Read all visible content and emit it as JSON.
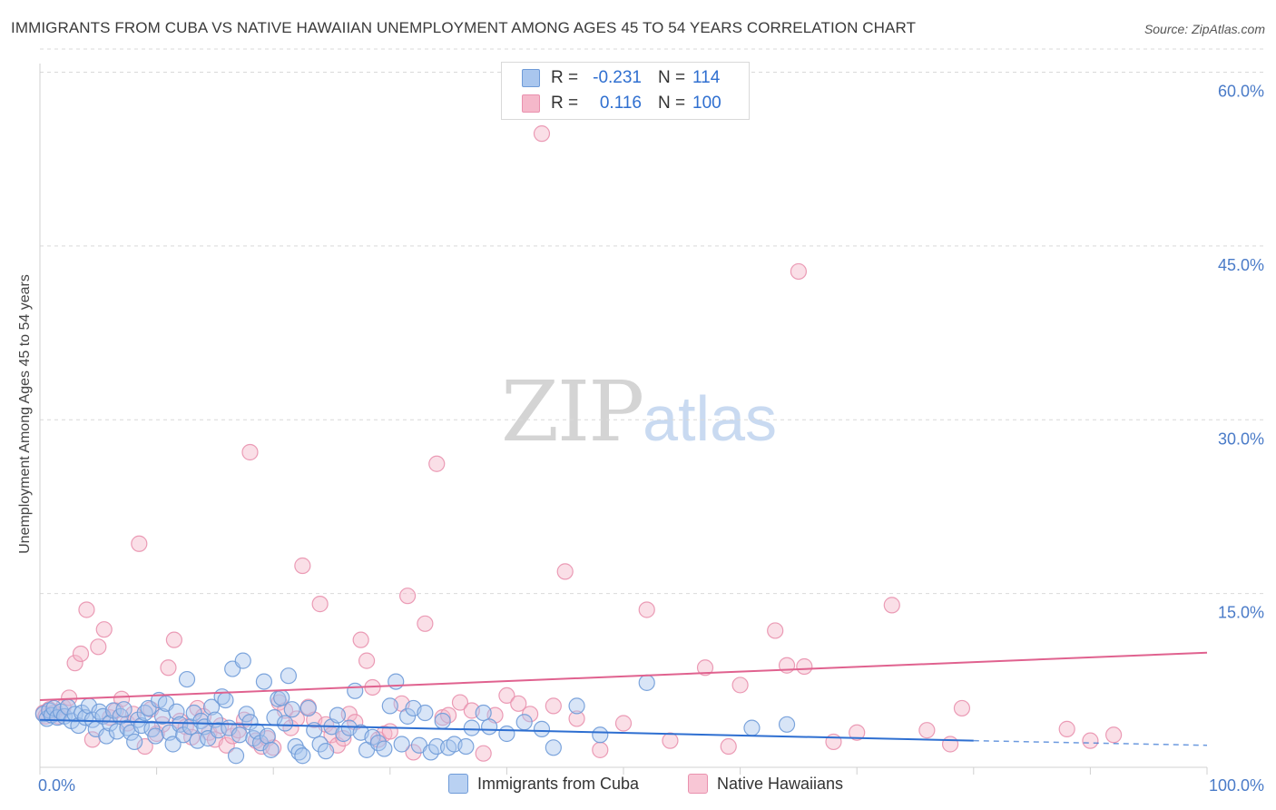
{
  "title": "IMMIGRANTS FROM CUBA VS NATIVE HAWAIIAN UNEMPLOYMENT AMONG AGES 45 TO 54 YEARS CORRELATION CHART",
  "source": "Source: ZipAtlas.com",
  "watermark": {
    "zip": "ZIP",
    "atlas": "atlas"
  },
  "legend": {
    "series1": {
      "r_label": "R =",
      "r_value": "-0.231",
      "n_label": "N =",
      "n_value": "114"
    },
    "series2": {
      "r_label": "R =",
      "r_value": "0.116",
      "n_label": "N =",
      "n_value": "100"
    }
  },
  "colors": {
    "blue_fill": "#a9c6ee",
    "blue_stroke": "#6f9bd8",
    "blue_line": "#2e6fd1",
    "pink_fill": "#f5b8ca",
    "pink_stroke": "#e991ae",
    "pink_line": "#e0628f",
    "grid": "#d9d9d9",
    "tick_text": "#4a7bc8"
  },
  "chart_data": {
    "type": "scatter",
    "title": "IMMIGRANTS FROM CUBA VS NATIVE HAWAIIAN UNEMPLOYMENT AMONG AGES 45 TO 54 YEARS CORRELATION CHART",
    "xlabel": "",
    "ylabel": "Unemployment Among Ages 45 to 54 years",
    "xlim": [
      0,
      100
    ],
    "ylim": [
      0,
      62
    ],
    "x_tick_labels": [
      "0.0%",
      "100.0%"
    ],
    "y_ticks": [
      15,
      30,
      45,
      60
    ],
    "y_tick_labels": [
      "15.0%",
      "30.0%",
      "45.0%",
      "60.0%"
    ],
    "grid": true,
    "legend_position": "top-center",
    "series": [
      {
        "name": "Immigrants from Cuba",
        "color": "blue",
        "trend": {
          "x0": 0,
          "y0": 4.1,
          "x1": 80,
          "y1": 2.3,
          "dashed_to": 100,
          "dashed_y": 1.9
        },
        "points": [
          [
            0.3,
            4.6
          ],
          [
            0.6,
            4.2
          ],
          [
            0.8,
            4.9
          ],
          [
            1.0,
            4.5
          ],
          [
            1.2,
            5.1
          ],
          [
            1.5,
            4.3
          ],
          [
            1.8,
            4.8
          ],
          [
            2.1,
            4.4
          ],
          [
            2.4,
            5.2
          ],
          [
            2.7,
            4.0
          ],
          [
            3.0,
            4.6
          ],
          [
            3.3,
            3.6
          ],
          [
            3.6,
            4.7
          ],
          [
            3.9,
            4.3
          ],
          [
            4.2,
            5.3
          ],
          [
            4.5,
            4.1
          ],
          [
            4.8,
            3.3
          ],
          [
            5.1,
            4.8
          ],
          [
            5.4,
            4.4
          ],
          [
            5.7,
            2.7
          ],
          [
            6.0,
            3.8
          ],
          [
            6.3,
            4.9
          ],
          [
            6.6,
            3.1
          ],
          [
            6.9,
            4.4
          ],
          [
            7.2,
            5.0
          ],
          [
            7.5,
            3.4
          ],
          [
            7.8,
            3.0
          ],
          [
            8.1,
            2.2
          ],
          [
            8.4,
            4.1
          ],
          [
            8.7,
            3.6
          ],
          [
            9.0,
            4.7
          ],
          [
            9.3,
            5.1
          ],
          [
            9.6,
            3.3
          ],
          [
            9.9,
            2.7
          ],
          [
            10.2,
            5.8
          ],
          [
            10.5,
            4.4
          ],
          [
            10.8,
            5.5
          ],
          [
            11.1,
            3.0
          ],
          [
            11.4,
            2.0
          ],
          [
            11.7,
            4.8
          ],
          [
            12.0,
            3.7
          ],
          [
            12.3,
            2.8
          ],
          [
            12.6,
            7.6
          ],
          [
            12.9,
            3.5
          ],
          [
            13.2,
            4.7
          ],
          [
            13.5,
            2.3
          ],
          [
            13.8,
            4.0
          ],
          [
            14.1,
            3.5
          ],
          [
            14.4,
            2.5
          ],
          [
            14.7,
            5.2
          ],
          [
            15.0,
            4.1
          ],
          [
            15.3,
            3.2
          ],
          [
            15.6,
            6.1
          ],
          [
            15.9,
            5.8
          ],
          [
            16.2,
            3.4
          ],
          [
            16.5,
            8.5
          ],
          [
            16.8,
            1.0
          ],
          [
            17.1,
            2.8
          ],
          [
            17.4,
            9.2
          ],
          [
            17.7,
            4.6
          ],
          [
            18.0,
            3.9
          ],
          [
            18.3,
            2.5
          ],
          [
            18.6,
            3.1
          ],
          [
            18.9,
            2.1
          ],
          [
            19.2,
            7.4
          ],
          [
            19.5,
            2.7
          ],
          [
            19.8,
            1.5
          ],
          [
            20.1,
            4.3
          ],
          [
            20.4,
            5.9
          ],
          [
            20.7,
            6.0
          ],
          [
            21.0,
            3.8
          ],
          [
            21.3,
            7.9
          ],
          [
            21.6,
            5.0
          ],
          [
            21.9,
            1.8
          ],
          [
            22.2,
            1.3
          ],
          [
            22.5,
            1.0
          ],
          [
            23.0,
            5.1
          ],
          [
            23.5,
            3.2
          ],
          [
            24.0,
            2.0
          ],
          [
            24.5,
            1.4
          ],
          [
            25.0,
            3.5
          ],
          [
            25.5,
            4.5
          ],
          [
            26.0,
            2.9
          ],
          [
            26.5,
            3.4
          ],
          [
            27.0,
            6.6
          ],
          [
            27.5,
            3.0
          ],
          [
            28.0,
            1.5
          ],
          [
            28.5,
            2.6
          ],
          [
            29.0,
            2.1
          ],
          [
            29.5,
            1.6
          ],
          [
            30.0,
            5.3
          ],
          [
            30.5,
            7.4
          ],
          [
            31.0,
            2.0
          ],
          [
            31.5,
            4.4
          ],
          [
            32.0,
            5.1
          ],
          [
            32.5,
            1.9
          ],
          [
            33.0,
            4.7
          ],
          [
            33.5,
            1.3
          ],
          [
            34.0,
            1.8
          ],
          [
            34.5,
            4.0
          ],
          [
            35.0,
            1.7
          ],
          [
            35.5,
            2.0
          ],
          [
            36.5,
            1.8
          ],
          [
            37.0,
            3.4
          ],
          [
            38.0,
            4.7
          ],
          [
            38.5,
            3.5
          ],
          [
            40.0,
            2.9
          ],
          [
            41.5,
            3.9
          ],
          [
            43.0,
            3.3
          ],
          [
            44.0,
            1.7
          ],
          [
            46.0,
            5.3
          ],
          [
            48.0,
            2.8
          ],
          [
            52.0,
            7.3
          ],
          [
            61.0,
            3.4
          ],
          [
            64.0,
            3.7
          ]
        ]
      },
      {
        "name": "Native Hawaiians",
        "color": "pink",
        "trend": {
          "x0": 0,
          "y0": 5.8,
          "x1": 100,
          "y1": 9.9
        },
        "points": [
          [
            0.3,
            4.7
          ],
          [
            0.5,
            4.4
          ],
          [
            0.8,
            5.0
          ],
          [
            1.2,
            4.7
          ],
          [
            1.6,
            4.4
          ],
          [
            2.0,
            5.2
          ],
          [
            2.5,
            6.0
          ],
          [
            3.0,
            9.0
          ],
          [
            3.5,
            9.8
          ],
          [
            4.0,
            13.6
          ],
          [
            4.5,
            2.4
          ],
          [
            5.0,
            10.4
          ],
          [
            5.5,
            11.9
          ],
          [
            6.0,
            4.3
          ],
          [
            6.5,
            4.9
          ],
          [
            7.0,
            5.9
          ],
          [
            7.5,
            3.8
          ],
          [
            8.0,
            4.6
          ],
          [
            8.5,
            19.3
          ],
          [
            9.0,
            1.8
          ],
          [
            9.5,
            5.0
          ],
          [
            10.0,
            2.9
          ],
          [
            10.5,
            3.7
          ],
          [
            11.0,
            8.6
          ],
          [
            11.5,
            11.0
          ],
          [
            12.0,
            4.0
          ],
          [
            12.5,
            3.5
          ],
          [
            13.0,
            2.6
          ],
          [
            13.5,
            5.1
          ],
          [
            14.0,
            4.4
          ],
          [
            14.5,
            3.0
          ],
          [
            15.0,
            2.4
          ],
          [
            15.5,
            3.6
          ],
          [
            16.0,
            1.9
          ],
          [
            16.5,
            2.7
          ],
          [
            17.0,
            3.2
          ],
          [
            17.5,
            4.1
          ],
          [
            18.0,
            27.2
          ],
          [
            18.5,
            2.3
          ],
          [
            19.0,
            1.8
          ],
          [
            19.5,
            2.5
          ],
          [
            20.0,
            1.7
          ],
          [
            20.5,
            5.6
          ],
          [
            21.0,
            4.9
          ],
          [
            21.5,
            3.4
          ],
          [
            22.0,
            4.2
          ],
          [
            22.5,
            17.4
          ],
          [
            23.0,
            5.2
          ],
          [
            23.5,
            4.1
          ],
          [
            24.0,
            14.1
          ],
          [
            24.5,
            3.7
          ],
          [
            25.0,
            2.8
          ],
          [
            25.5,
            1.9
          ],
          [
            26.0,
            2.5
          ],
          [
            26.5,
            4.6
          ],
          [
            27.0,
            3.9
          ],
          [
            27.5,
            11.0
          ],
          [
            28.0,
            9.2
          ],
          [
            28.5,
            6.9
          ],
          [
            29.0,
            2.4
          ],
          [
            29.5,
            2.9
          ],
          [
            30.0,
            3.1
          ],
          [
            31.0,
            5.5
          ],
          [
            31.5,
            14.8
          ],
          [
            32.0,
            1.3
          ],
          [
            33.0,
            12.4
          ],
          [
            34.0,
            26.2
          ],
          [
            34.5,
            4.3
          ],
          [
            35.0,
            4.5
          ],
          [
            36.0,
            5.6
          ],
          [
            37.0,
            4.9
          ],
          [
            38.0,
            1.2
          ],
          [
            39.0,
            4.5
          ],
          [
            40.0,
            6.2
          ],
          [
            41.0,
            5.5
          ],
          [
            42.0,
            4.6
          ],
          [
            43.0,
            54.7
          ],
          [
            44.0,
            5.3
          ],
          [
            45.0,
            16.9
          ],
          [
            46.0,
            4.2
          ],
          [
            48.0,
            1.5
          ],
          [
            50.0,
            3.8
          ],
          [
            52.0,
            13.6
          ],
          [
            54.0,
            2.3
          ],
          [
            57.0,
            8.6
          ],
          [
            59.0,
            1.8
          ],
          [
            60.0,
            7.1
          ],
          [
            63.0,
            11.8
          ],
          [
            64.0,
            8.8
          ],
          [
            65.0,
            42.8
          ],
          [
            65.5,
            8.7
          ],
          [
            68.0,
            2.2
          ],
          [
            70.0,
            3.0
          ],
          [
            73.0,
            14.0
          ],
          [
            76.0,
            3.2
          ],
          [
            78.0,
            2.0
          ],
          [
            79.0,
            5.1
          ],
          [
            88.0,
            3.3
          ],
          [
            90.0,
            2.3
          ],
          [
            92.0,
            2.8
          ]
        ]
      }
    ]
  },
  "bottom_legend": [
    {
      "label": "Immigrants from Cuba"
    },
    {
      "label": "Native Hawaiians"
    }
  ]
}
